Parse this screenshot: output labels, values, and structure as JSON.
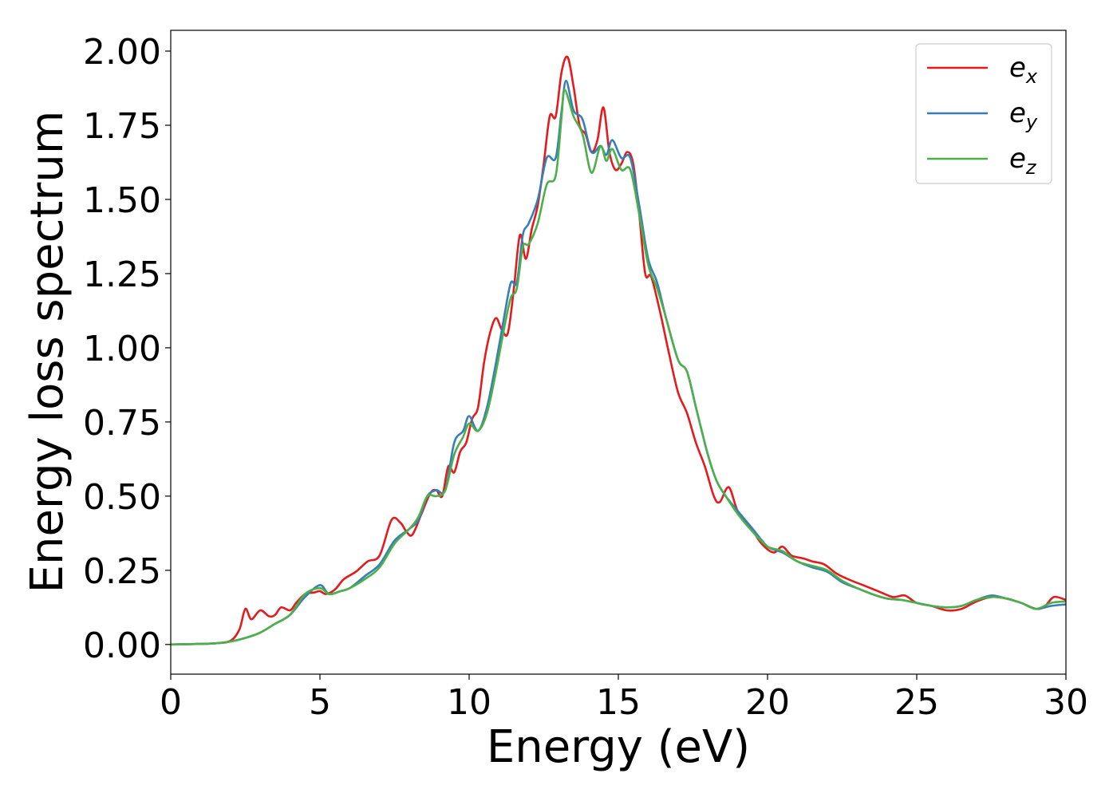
{
  "chart_data": {
    "type": "line",
    "title": "",
    "xlabel": "Energy (eV)",
    "ylabel": "Energy loss spectrum",
    "xlim": [
      0,
      30
    ],
    "ylim": [
      -0.1,
      2.07
    ],
    "xticks": [
      0,
      5,
      10,
      15,
      20,
      25,
      30
    ],
    "xtick_labels": [
      "0",
      "5",
      "10",
      "15",
      "20",
      "25",
      "30"
    ],
    "yticks": [
      0.0,
      0.25,
      0.5,
      0.75,
      1.0,
      1.25,
      1.5,
      1.75,
      2.0
    ],
    "ytick_labels": [
      "0.00",
      "0.25",
      "0.50",
      "0.75",
      "1.00",
      "1.25",
      "1.50",
      "1.75",
      "2.00"
    ],
    "grid": false,
    "legend_position": "top-right",
    "series": [
      {
        "name": "e",
        "subscript": "x",
        "color": "#e41a1c",
        "points": [
          [
            0,
            0
          ],
          [
            1,
            0.002
          ],
          [
            1.5,
            0.004
          ],
          [
            2,
            0.012
          ],
          [
            2.3,
            0.05
          ],
          [
            2.5,
            0.12
          ],
          [
            2.7,
            0.085
          ],
          [
            3,
            0.115
          ],
          [
            3.3,
            0.095
          ],
          [
            3.5,
            0.1
          ],
          [
            3.7,
            0.125
          ],
          [
            4,
            0.115
          ],
          [
            4.2,
            0.14
          ],
          [
            4.5,
            0.17
          ],
          [
            4.8,
            0.175
          ],
          [
            5,
            0.18
          ],
          [
            5.2,
            0.17
          ],
          [
            5.5,
            0.185
          ],
          [
            5.8,
            0.22
          ],
          [
            6.2,
            0.245
          ],
          [
            6.6,
            0.28
          ],
          [
            7,
            0.3
          ],
          [
            7.4,
            0.42
          ],
          [
            7.7,
            0.41
          ],
          [
            7.9,
            0.38
          ],
          [
            8.1,
            0.37
          ],
          [
            8.4,
            0.44
          ],
          [
            8.7,
            0.51
          ],
          [
            8.9,
            0.52
          ],
          [
            9.1,
            0.5
          ],
          [
            9.3,
            0.6
          ],
          [
            9.5,
            0.58
          ],
          [
            9.7,
            0.65
          ],
          [
            9.9,
            0.68
          ],
          [
            10.1,
            0.76
          ],
          [
            10.3,
            0.8
          ],
          [
            10.5,
            0.95
          ],
          [
            10.7,
            1.05
          ],
          [
            10.9,
            1.1
          ],
          [
            11.1,
            1.06
          ],
          [
            11.3,
            1.05
          ],
          [
            11.5,
            1.2
          ],
          [
            11.7,
            1.38
          ],
          [
            11.9,
            1.3
          ],
          [
            12.1,
            1.4
          ],
          [
            12.3,
            1.48
          ],
          [
            12.5,
            1.62
          ],
          [
            12.7,
            1.78
          ],
          [
            12.9,
            1.78
          ],
          [
            13.1,
            1.93
          ],
          [
            13.3,
            1.98
          ],
          [
            13.5,
            1.88
          ],
          [
            13.7,
            1.75
          ],
          [
            13.9,
            1.72
          ],
          [
            14.1,
            1.66
          ],
          [
            14.3,
            1.7
          ],
          [
            14.5,
            1.81
          ],
          [
            14.7,
            1.66
          ],
          [
            14.9,
            1.6
          ],
          [
            15.1,
            1.62
          ],
          [
            15.3,
            1.66
          ],
          [
            15.5,
            1.62
          ],
          [
            15.7,
            1.45
          ],
          [
            15.9,
            1.25
          ],
          [
            16.1,
            1.24
          ],
          [
            16.4,
            1.12
          ],
          [
            16.7,
            0.98
          ],
          [
            17,
            0.85
          ],
          [
            17.3,
            0.78
          ],
          [
            17.6,
            0.68
          ],
          [
            17.9,
            0.6
          ],
          [
            18.2,
            0.5
          ],
          [
            18.4,
            0.48
          ],
          [
            18.7,
            0.53
          ],
          [
            19,
            0.45
          ],
          [
            19.4,
            0.4
          ],
          [
            19.8,
            0.34
          ],
          [
            20.2,
            0.31
          ],
          [
            20.5,
            0.33
          ],
          [
            20.8,
            0.3
          ],
          [
            21.2,
            0.29
          ],
          [
            21.5,
            0.28
          ],
          [
            21.9,
            0.27
          ],
          [
            22.3,
            0.24
          ],
          [
            22.7,
            0.22
          ],
          [
            23.2,
            0.2
          ],
          [
            23.7,
            0.18
          ],
          [
            24.2,
            0.16
          ],
          [
            24.6,
            0.165
          ],
          [
            25,
            0.14
          ],
          [
            25.5,
            0.13
          ],
          [
            26,
            0.115
          ],
          [
            26.5,
            0.12
          ],
          [
            27,
            0.145
          ],
          [
            27.5,
            0.16
          ],
          [
            28,
            0.155
          ],
          [
            28.5,
            0.14
          ],
          [
            29,
            0.12
          ],
          [
            29.3,
            0.13
          ],
          [
            29.6,
            0.16
          ],
          [
            30,
            0.15
          ]
        ]
      },
      {
        "name": "e",
        "subscript": "y",
        "color": "#377eb8",
        "points": [
          [
            0,
            0
          ],
          [
            1,
            0.002
          ],
          [
            1.5,
            0.004
          ],
          [
            2,
            0.01
          ],
          [
            2.5,
            0.022
          ],
          [
            3,
            0.04
          ],
          [
            3.5,
            0.07
          ],
          [
            4,
            0.1
          ],
          [
            4.5,
            0.16
          ],
          [
            5,
            0.2
          ],
          [
            5.3,
            0.17
          ],
          [
            5.7,
            0.18
          ],
          [
            6,
            0.19
          ],
          [
            6.5,
            0.23
          ],
          [
            7,
            0.27
          ],
          [
            7.5,
            0.35
          ],
          [
            8,
            0.39
          ],
          [
            8.3,
            0.42
          ],
          [
            8.6,
            0.5
          ],
          [
            8.9,
            0.52
          ],
          [
            9.2,
            0.52
          ],
          [
            9.5,
            0.68
          ],
          [
            9.8,
            0.72
          ],
          [
            10,
            0.77
          ],
          [
            10.3,
            0.72
          ],
          [
            10.6,
            0.8
          ],
          [
            10.9,
            0.95
          ],
          [
            11.2,
            1.12
          ],
          [
            11.4,
            1.22
          ],
          [
            11.6,
            1.22
          ],
          [
            11.8,
            1.38
          ],
          [
            12,
            1.42
          ],
          [
            12.3,
            1.5
          ],
          [
            12.6,
            1.64
          ],
          [
            12.9,
            1.64
          ],
          [
            13.1,
            1.8
          ],
          [
            13.25,
            1.9
          ],
          [
            13.5,
            1.8
          ],
          [
            13.8,
            1.77
          ],
          [
            14.1,
            1.66
          ],
          [
            14.4,
            1.68
          ],
          [
            14.6,
            1.65
          ],
          [
            14.8,
            1.7
          ],
          [
            15.1,
            1.64
          ],
          [
            15.4,
            1.64
          ],
          [
            15.7,
            1.48
          ],
          [
            16,
            1.3
          ],
          [
            16.3,
            1.22
          ],
          [
            16.6,
            1.1
          ],
          [
            17,
            0.96
          ],
          [
            17.3,
            0.92
          ],
          [
            17.6,
            0.8
          ],
          [
            18,
            0.64
          ],
          [
            18.3,
            0.55
          ],
          [
            18.6,
            0.5
          ],
          [
            19,
            0.45
          ],
          [
            19.5,
            0.39
          ],
          [
            20,
            0.33
          ],
          [
            20.5,
            0.31
          ],
          [
            21,
            0.28
          ],
          [
            21.5,
            0.26
          ],
          [
            22,
            0.245
          ],
          [
            22.5,
            0.21
          ],
          [
            23,
            0.19
          ],
          [
            23.5,
            0.17
          ],
          [
            24,
            0.155
          ],
          [
            24.5,
            0.15
          ],
          [
            25,
            0.14
          ],
          [
            25.5,
            0.13
          ],
          [
            26,
            0.125
          ],
          [
            26.5,
            0.13
          ],
          [
            27,
            0.15
          ],
          [
            27.5,
            0.165
          ],
          [
            28,
            0.155
          ],
          [
            28.5,
            0.14
          ],
          [
            29,
            0.12
          ],
          [
            29.5,
            0.13
          ],
          [
            30,
            0.135
          ]
        ]
      },
      {
        "name": "e",
        "subscript": "z",
        "color": "#4daf4a",
        "points": [
          [
            0,
            0
          ],
          [
            1,
            0.002
          ],
          [
            1.5,
            0.004
          ],
          [
            2,
            0.01
          ],
          [
            2.5,
            0.022
          ],
          [
            3,
            0.04
          ],
          [
            3.5,
            0.07
          ],
          [
            4,
            0.1
          ],
          [
            4.5,
            0.17
          ],
          [
            5,
            0.19
          ],
          [
            5.3,
            0.17
          ],
          [
            5.7,
            0.18
          ],
          [
            6,
            0.19
          ],
          [
            6.5,
            0.22
          ],
          [
            7,
            0.26
          ],
          [
            7.5,
            0.34
          ],
          [
            8,
            0.39
          ],
          [
            8.3,
            0.43
          ],
          [
            8.6,
            0.5
          ],
          [
            8.9,
            0.5
          ],
          [
            9.2,
            0.52
          ],
          [
            9.5,
            0.64
          ],
          [
            9.8,
            0.7
          ],
          [
            10,
            0.745
          ],
          [
            10.3,
            0.72
          ],
          [
            10.6,
            0.78
          ],
          [
            10.9,
            0.92
          ],
          [
            11.2,
            1.08
          ],
          [
            11.4,
            1.17
          ],
          [
            11.6,
            1.2
          ],
          [
            11.8,
            1.34
          ],
          [
            12,
            1.35
          ],
          [
            12.3,
            1.42
          ],
          [
            12.6,
            1.55
          ],
          [
            12.9,
            1.58
          ],
          [
            13.1,
            1.78
          ],
          [
            13.2,
            1.87
          ],
          [
            13.5,
            1.78
          ],
          [
            13.8,
            1.72
          ],
          [
            14.1,
            1.59
          ],
          [
            14.4,
            1.68
          ],
          [
            14.6,
            1.63
          ],
          [
            14.8,
            1.67
          ],
          [
            15.1,
            1.6
          ],
          [
            15.4,
            1.6
          ],
          [
            15.7,
            1.45
          ],
          [
            16,
            1.28
          ],
          [
            16.3,
            1.2
          ],
          [
            16.6,
            1.1
          ],
          [
            17,
            0.96
          ],
          [
            17.3,
            0.92
          ],
          [
            17.6,
            0.8
          ],
          [
            18,
            0.64
          ],
          [
            18.3,
            0.55
          ],
          [
            18.6,
            0.5
          ],
          [
            19,
            0.44
          ],
          [
            19.5,
            0.38
          ],
          [
            20,
            0.33
          ],
          [
            20.5,
            0.315
          ],
          [
            21,
            0.28
          ],
          [
            21.5,
            0.265
          ],
          [
            22,
            0.25
          ],
          [
            22.5,
            0.215
          ],
          [
            23,
            0.19
          ],
          [
            23.5,
            0.17
          ],
          [
            24,
            0.155
          ],
          [
            24.5,
            0.15
          ],
          [
            25,
            0.14
          ],
          [
            25.5,
            0.13
          ],
          [
            26,
            0.125
          ],
          [
            26.5,
            0.13
          ],
          [
            27,
            0.15
          ],
          [
            27.5,
            0.16
          ],
          [
            28,
            0.155
          ],
          [
            28.5,
            0.14
          ],
          [
            29,
            0.12
          ],
          [
            29.5,
            0.14
          ],
          [
            30,
            0.145
          ]
        ]
      }
    ]
  }
}
